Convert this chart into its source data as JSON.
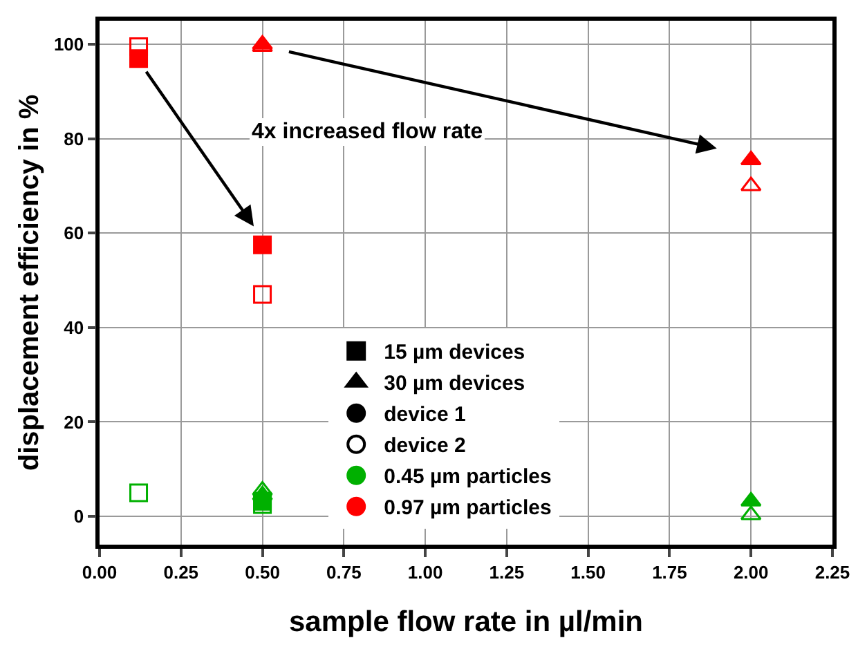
{
  "chart_data": {
    "type": "scatter",
    "xlabel": "sample flow rate in µl/min",
    "ylabel": "displacement efficiency in %",
    "annotations": [
      "4x increased flow rate"
    ],
    "series": [
      {
        "name": "15 µm devices",
        "color": "#000000",
        "marker": "square"
      },
      {
        "name": "30 µm devices",
        "color": "#000000",
        "marker": "triangle"
      },
      {
        "name": "device 1",
        "color": "#000000",
        "marker": "circle"
      },
      {
        "name": "device 2",
        "color": "#000000",
        "marker": "circle-open"
      },
      {
        "name": "0.45 µm particles",
        "color": "#00b000",
        "marker": "circle"
      },
      {
        "name": "0.97 µm particles",
        "color": "#ff0000",
        "marker": "circle"
      },
      {
        "color": "#ff0000",
        "marker": "square",
        "x": [
          0.12,
          0.5
        ],
        "values": [
          97,
          57.5
        ]
      },
      {
        "color": "#ff0000",
        "marker": "square-open",
        "x": [
          0.12,
          0.5
        ],
        "values": [
          99.5,
          47
        ]
      },
      {
        "color": "#ff0000",
        "marker": "triangle",
        "x": [
          0.5,
          2.0
        ],
        "values": [
          100,
          75.5
        ]
      },
      {
        "color": "#ff0000",
        "marker": "triangle-open",
        "x": [
          0.5,
          2.0
        ],
        "values": [
          99.5,
          70
        ]
      },
      {
        "color": "#00b000",
        "marker": "square-open",
        "x": [
          0.12,
          0.5
        ],
        "values": [
          5,
          2.5
        ]
      },
      {
        "color": "#00b000",
        "marker": "square",
        "x": [
          0.5
        ],
        "values": [
          3.2
        ]
      },
      {
        "color": "#00b000",
        "marker": "triangle",
        "x": [
          0.5,
          2.0
        ],
        "values": [
          4.5,
          3.2
        ]
      },
      {
        "color": "#00b000",
        "marker": "triangle-open",
        "x": [
          0.5,
          2.0
        ],
        "values": [
          5.5,
          0.3
        ]
      }
    ],
    "xlim": [
      0,
      2.25
    ],
    "xticks": [
      {
        "value": 0,
        "label": "0.00"
      },
      {
        "value": 0.25,
        "label": "0.25"
      },
      {
        "value": 0.5,
        "label": "0.50"
      },
      {
        "value": 0.75,
        "label": "0.75"
      },
      {
        "value": 1,
        "label": "1.00"
      },
      {
        "value": 1.25,
        "label": "1.25"
      },
      {
        "value": 1.5,
        "label": "1.50"
      },
      {
        "value": 1.75,
        "label": "1.75"
      },
      {
        "value": 2,
        "label": "2.00"
      },
      {
        "value": 2.25,
        "label": "2.25"
      }
    ],
    "ylim": [
      -6,
      105
    ],
    "yticks": [
      0,
      20,
      40,
      60,
      80,
      100
    ],
    "grid": true,
    "legend": "bottom"
  }
}
